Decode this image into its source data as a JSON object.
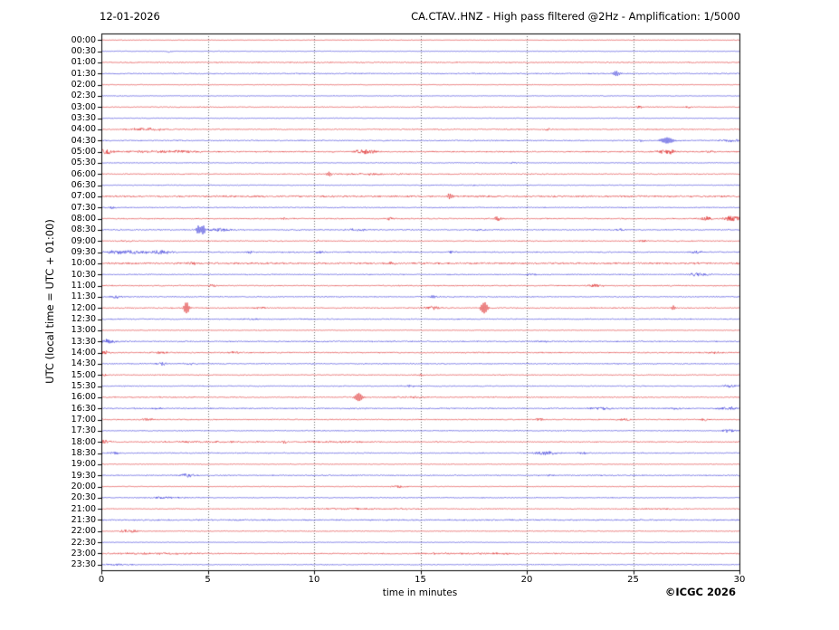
{
  "header": {
    "date": "12-01-2026",
    "title": "CA.CTAV..HNZ - High pass filtered @2Hz - Amplification: 1/5000"
  },
  "footer": {
    "credit": "©ICGC 2026"
  },
  "axes": {
    "xlabel": "time in minutes",
    "ylabel": "UTC (local time = UTC + 01:00)",
    "x_ticks": [
      0,
      5,
      10,
      15,
      20,
      25,
      30
    ],
    "x_range": [
      0,
      30
    ],
    "grid": "dotted vertical lines every 5 minutes"
  },
  "colors": {
    "trace_red": "rgba(220,30,30,0.85)",
    "trace_blue": "rgba(40,40,215,0.85)",
    "grid": "#555555",
    "frame": "#000000",
    "background": "#ffffff"
  },
  "chart_data": {
    "type": "line",
    "subtype": "helicorder-daily-seismogram",
    "title": "CA.CTAV..HNZ - High pass filtered @2Hz - Amplification: 1/5000",
    "date": "12-01-2026",
    "xlabel": "time in minutes",
    "ylabel": "UTC (local time = UTC + 01:00)",
    "x_ticks": [
      0,
      5,
      10,
      15,
      20,
      25,
      30
    ],
    "x_range": [
      0,
      30
    ],
    "row_duration_minutes": 30,
    "rows_note": "48 half-hour traces, on-the-hour rows red, half-hour rows blue; events: t=minutes, a=peak amplitude px, w=width minutes, s=sharp spike",
    "rows": [
      {
        "label": "00:00",
        "color": "red",
        "noise": 0.25,
        "events": []
      },
      {
        "label": "00:30",
        "color": "blue",
        "noise": 0.3,
        "events": [
          {
            "t": 3.2,
            "a": 1.2,
            "w": 0.15
          }
        ]
      },
      {
        "label": "01:00",
        "color": "red",
        "noise": 0.5,
        "events": []
      },
      {
        "label": "01:30",
        "color": "blue",
        "noise": 0.5,
        "events": [
          {
            "t": 24.2,
            "a": 2.8,
            "w": 0.18,
            "s": true
          }
        ]
      },
      {
        "label": "02:00",
        "color": "red",
        "noise": 0.3,
        "events": []
      },
      {
        "label": "02:30",
        "color": "blue",
        "noise": 0.3,
        "events": []
      },
      {
        "label": "03:00",
        "color": "red",
        "noise": 0.4,
        "events": [
          {
            "t": 25.3,
            "a": 1.6,
            "w": 0.15
          },
          {
            "t": 27.6,
            "a": 1.3,
            "w": 0.15
          }
        ]
      },
      {
        "label": "03:30",
        "color": "blue",
        "noise": 0.35,
        "events": []
      },
      {
        "label": "04:00",
        "color": "red",
        "noise": 0.5,
        "events": [
          {
            "t": 2.1,
            "a": 1.6,
            "w": 0.9
          },
          {
            "t": 21.0,
            "a": 1.3,
            "w": 0.2
          }
        ]
      },
      {
        "label": "04:30",
        "color": "blue",
        "noise": 0.5,
        "events": [
          {
            "t": 25.3,
            "a": 1.2,
            "w": 0.2
          },
          {
            "t": 26.6,
            "a": 3.2,
            "w": 0.3,
            "s": true
          },
          {
            "t": 29.6,
            "a": 1.4,
            "w": 0.5
          }
        ]
      },
      {
        "label": "05:00",
        "color": "red",
        "noise": 0.6,
        "events": [
          {
            "t": 0.2,
            "a": 2.8,
            "w": 0.4
          },
          {
            "t": 2.2,
            "a": 1.4,
            "w": 1.2
          },
          {
            "t": 3.9,
            "a": 1.4,
            "w": 0.8
          },
          {
            "t": 12.4,
            "a": 2.8,
            "w": 0.5
          },
          {
            "t": 26.6,
            "a": 2.8,
            "w": 0.5
          },
          {
            "t": 28.6,
            "a": 1.1,
            "w": 0.3
          }
        ]
      },
      {
        "label": "05:30",
        "color": "blue",
        "noise": 0.35,
        "events": [
          {
            "t": 19.4,
            "a": 1.1,
            "w": 0.15
          }
        ]
      },
      {
        "label": "06:00",
        "color": "red",
        "noise": 0.45,
        "events": [
          {
            "t": 10.7,
            "a": 1.8,
            "w": 0.15,
            "s": true
          },
          {
            "t": 12.5,
            "a": 0.9,
            "w": 2.0
          }
        ]
      },
      {
        "label": "06:30",
        "color": "blue",
        "noise": 0.4,
        "events": [
          {
            "t": 17.5,
            "a": 0.9,
            "w": 0.2
          }
        ]
      },
      {
        "label": "07:00",
        "color": "red",
        "noise": 0.85,
        "events": [
          {
            "t": 16.4,
            "a": 2.8,
            "w": 0.15,
            "s": true
          }
        ]
      },
      {
        "label": "07:30",
        "color": "blue",
        "noise": 0.45,
        "events": [
          {
            "t": 0.5,
            "a": 1.8,
            "w": 0.2
          }
        ]
      },
      {
        "label": "08:00",
        "color": "red",
        "noise": 0.5,
        "events": [
          {
            "t": 8.6,
            "a": 1.2,
            "w": 0.2
          },
          {
            "t": 13.6,
            "a": 1.4,
            "w": 0.3
          },
          {
            "t": 18.6,
            "a": 2.2,
            "w": 0.3
          },
          {
            "t": 28.4,
            "a": 2.2,
            "w": 0.35
          },
          {
            "t": 29.7,
            "a": 3.2,
            "w": 0.45
          }
        ]
      },
      {
        "label": "08:30",
        "color": "blue",
        "noise": 0.5,
        "events": [
          {
            "t": 4.55,
            "a": 4.8,
            "w": 0.1,
            "s": true
          },
          {
            "t": 4.78,
            "a": 4.8,
            "w": 0.1,
            "s": true
          },
          {
            "t": 5.6,
            "a": 1.6,
            "w": 0.7
          },
          {
            "t": 12.0,
            "a": 1.3,
            "w": 0.5
          },
          {
            "t": 17.8,
            "a": 1.1,
            "w": 0.3
          },
          {
            "t": 24.4,
            "a": 1.3,
            "w": 0.3
          }
        ]
      },
      {
        "label": "09:00",
        "color": "red",
        "noise": 0.45,
        "events": [
          {
            "t": 1.2,
            "a": 1.1,
            "w": 0.3
          },
          {
            "t": 10.2,
            "a": 0.9,
            "w": 0.2
          },
          {
            "t": 25.5,
            "a": 1.1,
            "w": 0.2
          }
        ]
      },
      {
        "label": "09:30",
        "color": "blue",
        "noise": 0.55,
        "events": [
          {
            "t": 1.1,
            "a": 2.0,
            "w": 1.1
          },
          {
            "t": 2.8,
            "a": 2.0,
            "w": 0.6
          },
          {
            "t": 7.0,
            "a": 1.2,
            "w": 0.3
          },
          {
            "t": 10.3,
            "a": 1.1,
            "w": 0.3
          },
          {
            "t": 16.5,
            "a": 1.2,
            "w": 0.3
          },
          {
            "t": 28.0,
            "a": 1.2,
            "w": 0.4
          }
        ]
      },
      {
        "label": "10:00",
        "color": "red",
        "noise": 0.85,
        "events": [
          {
            "t": 4.3,
            "a": 1.3,
            "w": 0.3
          },
          {
            "t": 13.6,
            "a": 1.3,
            "w": 0.3
          }
        ]
      },
      {
        "label": "10:30",
        "color": "blue",
        "noise": 0.45,
        "events": [
          {
            "t": 20.3,
            "a": 1.3,
            "w": 0.3
          },
          {
            "t": 28.1,
            "a": 2.0,
            "w": 0.5
          }
        ]
      },
      {
        "label": "11:00",
        "color": "red",
        "noise": 0.5,
        "events": [
          {
            "t": 5.2,
            "a": 1.2,
            "w": 0.3
          },
          {
            "t": 23.2,
            "a": 1.6,
            "w": 0.4
          }
        ]
      },
      {
        "label": "11:30",
        "color": "blue",
        "noise": 0.45,
        "events": [
          {
            "t": 0.7,
            "a": 1.6,
            "w": 0.25
          },
          {
            "t": 15.6,
            "a": 1.4,
            "w": 0.2,
            "s": true
          }
        ]
      },
      {
        "label": "12:00",
        "color": "red",
        "noise": 0.5,
        "events": [
          {
            "t": 4.0,
            "a": 6.5,
            "w": 0.13,
            "s": true
          },
          {
            "t": 7.5,
            "a": 1.2,
            "w": 0.3
          },
          {
            "t": 15.5,
            "a": 2.2,
            "w": 0.4
          },
          {
            "t": 18.0,
            "a": 6.5,
            "w": 0.16,
            "s": true
          },
          {
            "t": 26.9,
            "a": 2.4,
            "w": 0.1,
            "s": true
          }
        ]
      },
      {
        "label": "12:30",
        "color": "blue",
        "noise": 0.5,
        "events": [
          {
            "t": 7.2,
            "a": 1.1,
            "w": 0.4
          },
          {
            "t": 9.6,
            "a": 0.9,
            "w": 0.3
          }
        ]
      },
      {
        "label": "13:00",
        "color": "red",
        "noise": 0.35,
        "events": []
      },
      {
        "label": "13:30",
        "color": "blue",
        "noise": 0.55,
        "events": [
          {
            "t": 0.3,
            "a": 2.2,
            "w": 0.5
          },
          {
            "t": 20.8,
            "a": 1.1,
            "w": 0.3
          }
        ]
      },
      {
        "label": "14:00",
        "color": "red",
        "noise": 0.55,
        "events": [
          {
            "t": 0.15,
            "a": 2.0,
            "w": 0.3
          },
          {
            "t": 2.8,
            "a": 1.2,
            "w": 0.5
          },
          {
            "t": 6.3,
            "a": 1.2,
            "w": 0.3
          },
          {
            "t": 28.8,
            "a": 1.1,
            "w": 0.3
          }
        ]
      },
      {
        "label": "14:30",
        "color": "blue",
        "noise": 0.45,
        "events": [
          {
            "t": 2.9,
            "a": 1.6,
            "w": 0.3
          },
          {
            "t": 4.2,
            "a": 1.3,
            "w": 0.25
          }
        ]
      },
      {
        "label": "15:00",
        "color": "red",
        "noise": 0.4,
        "events": [
          {
            "t": 0.15,
            "a": 1.4,
            "w": 0.2
          },
          {
            "t": 15.0,
            "a": 1.6,
            "w": 0.2
          }
        ]
      },
      {
        "label": "15:30",
        "color": "blue",
        "noise": 0.45,
        "events": [
          {
            "t": 14.5,
            "a": 0.9,
            "w": 0.5
          },
          {
            "t": 29.5,
            "a": 1.6,
            "w": 0.4
          }
        ]
      },
      {
        "label": "16:00",
        "color": "red",
        "noise": 0.5,
        "events": [
          {
            "t": 12.1,
            "a": 5.8,
            "w": 0.18,
            "s": true
          },
          {
            "t": 14.5,
            "a": 1.1,
            "w": 1.0
          }
        ]
      },
      {
        "label": "16:30",
        "color": "blue",
        "noise": 0.55,
        "events": [
          {
            "t": 2.7,
            "a": 1.2,
            "w": 0.3
          },
          {
            "t": 23.5,
            "a": 1.6,
            "w": 0.5
          },
          {
            "t": 27.0,
            "a": 1.1,
            "w": 0.3
          },
          {
            "t": 29.4,
            "a": 1.6,
            "w": 0.5
          }
        ]
      },
      {
        "label": "17:00",
        "color": "red",
        "noise": 0.5,
        "events": [
          {
            "t": 2.2,
            "a": 1.6,
            "w": 0.3
          },
          {
            "t": 20.6,
            "a": 1.4,
            "w": 0.25
          },
          {
            "t": 24.6,
            "a": 1.6,
            "w": 0.3
          },
          {
            "t": 28.4,
            "a": 2.0,
            "w": 0.25
          }
        ]
      },
      {
        "label": "17:30",
        "color": "blue",
        "noise": 0.4,
        "events": [
          {
            "t": 29.5,
            "a": 1.6,
            "w": 0.4
          }
        ]
      },
      {
        "label": "18:00",
        "color": "red",
        "noise": 0.5,
        "events": [
          {
            "t": 0.15,
            "a": 2.2,
            "w": 0.3
          },
          {
            "t": 5.0,
            "a": 0.8,
            "w": 3.0
          },
          {
            "t": 8.6,
            "a": 1.6,
            "w": 0.2
          },
          {
            "t": 11.5,
            "a": 0.8,
            "w": 2.0
          }
        ]
      },
      {
        "label": "18:30",
        "color": "blue",
        "noise": 0.5,
        "events": [
          {
            "t": 0.6,
            "a": 1.4,
            "w": 0.3
          },
          {
            "t": 20.9,
            "a": 2.0,
            "w": 0.6
          },
          {
            "t": 22.6,
            "a": 1.2,
            "w": 0.3
          }
        ]
      },
      {
        "label": "19:00",
        "color": "red",
        "noise": 0.35,
        "events": []
      },
      {
        "label": "19:30",
        "color": "blue",
        "noise": 0.5,
        "events": [
          {
            "t": 4.1,
            "a": 2.0,
            "w": 0.4
          },
          {
            "t": 21.0,
            "a": 0.9,
            "w": 0.3
          }
        ]
      },
      {
        "label": "20:00",
        "color": "red",
        "noise": 0.3,
        "events": [
          {
            "t": 14.0,
            "a": 1.4,
            "w": 0.4
          }
        ]
      },
      {
        "label": "20:30",
        "color": "blue",
        "noise": 0.4,
        "events": [
          {
            "t": 3.0,
            "a": 0.9,
            "w": 1.0
          }
        ]
      },
      {
        "label": "21:00",
        "color": "red",
        "noise": 0.4,
        "events": [
          {
            "t": 12.0,
            "a": 0.7,
            "w": 3.5
          },
          {
            "t": 26.0,
            "a": 0.7,
            "w": 1.5
          }
        ]
      },
      {
        "label": "21:30",
        "color": "blue",
        "noise": 0.65,
        "events": []
      },
      {
        "label": "22:00",
        "color": "red",
        "noise": 0.4,
        "events": [
          {
            "t": 1.3,
            "a": 2.0,
            "w": 0.4
          }
        ]
      },
      {
        "label": "22:30",
        "color": "blue",
        "noise": 0.3,
        "events": []
      },
      {
        "label": "23:00",
        "color": "red",
        "noise": 0.5,
        "events": [
          {
            "t": 2.5,
            "a": 0.8,
            "w": 3.0
          },
          {
            "t": 17.5,
            "a": 0.8,
            "w": 3.5
          }
        ]
      },
      {
        "label": "23:30",
        "color": "blue",
        "noise": 0.4,
        "events": [
          {
            "t": 0.8,
            "a": 0.9,
            "w": 0.8
          }
        ]
      }
    ]
  }
}
